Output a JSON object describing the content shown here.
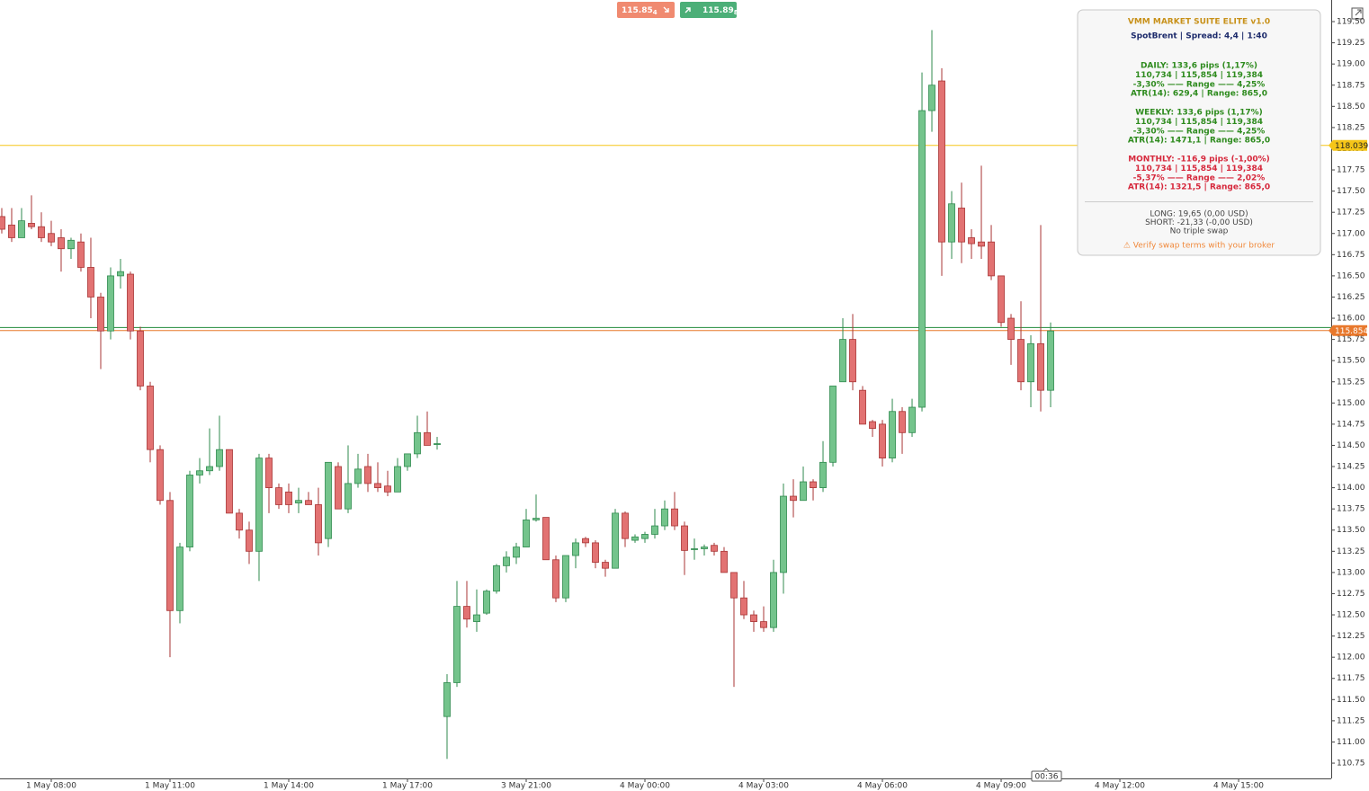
{
  "chart_data": {
    "type": "candlestick",
    "open": [
      117.2,
      117.1,
      116.95,
      117.12,
      117.08,
      117.0,
      116.95,
      116.82,
      116.9,
      116.6,
      116.25,
      115.85,
      116.5,
      116.52,
      115.85,
      115.2,
      114.45,
      113.85,
      112.55,
      113.3,
      114.15,
      114.2,
      114.25,
      114.45,
      113.7,
      113.5,
      113.25,
      114.35,
      114.0,
      113.95,
      113.82,
      113.85,
      113.8,
      113.4,
      114.25,
      113.75,
      114.05,
      114.25,
      114.05,
      114.02,
      113.95,
      114.25,
      114.4,
      114.65,
      114.52,
      111.3,
      111.7,
      112.6,
      112.42,
      112.52,
      112.78,
      113.08,
      113.18,
      113.3,
      113.62,
      113.65,
      113.15,
      112.7,
      113.2,
      113.4,
      113.35,
      113.12,
      113.05,
      113.7,
      113.38,
      113.4,
      113.45,
      113.55,
      113.75,
      113.55,
      113.27,
      113.28,
      113.32,
      113.25,
      113.0,
      112.7,
      112.5,
      112.42,
      112.35,
      113.0,
      113.9,
      113.85,
      114.07,
      114.0,
      114.3,
      115.25,
      115.75,
      115.15,
      114.78,
      114.75,
      114.35,
      114.9,
      114.65,
      114.95,
      118.45,
      118.8,
      116.9,
      117.3,
      116.95,
      116.9,
      116.9,
      116.5,
      116.0,
      115.75,
      115.25,
      115.7,
      115.15
    ],
    "high": [
      117.3,
      117.3,
      117.3,
      117.45,
      117.25,
      117.15,
      117.05,
      116.95,
      117.0,
      116.95,
      116.3,
      116.6,
      116.7,
      116.55,
      115.9,
      115.25,
      114.5,
      113.95,
      113.35,
      114.2,
      114.35,
      114.7,
      114.85,
      114.45,
      113.75,
      113.6,
      114.4,
      114.4,
      114.05,
      114.05,
      114.0,
      113.95,
      114.0,
      114.3,
      114.3,
      114.5,
      114.4,
      114.4,
      114.3,
      114.2,
      114.35,
      114.4,
      114.85,
      114.9,
      114.6,
      111.8,
      112.9,
      112.9,
      112.8,
      112.8,
      113.1,
      113.25,
      113.35,
      113.75,
      113.92,
      113.65,
      113.2,
      113.2,
      113.4,
      113.42,
      113.38,
      113.15,
      113.75,
      113.72,
      113.45,
      113.48,
      113.75,
      113.85,
      113.95,
      113.6,
      113.4,
      113.33,
      113.35,
      113.3,
      113.0,
      112.9,
      112.55,
      112.6,
      113.15,
      114.05,
      114.1,
      114.25,
      114.1,
      114.55,
      115.2,
      116.0,
      116.05,
      115.2,
      114.8,
      114.8,
      115.05,
      114.95,
      115.05,
      118.9,
      119.4,
      118.95,
      117.5,
      117.6,
      117.05,
      117.8,
      117.1,
      116.5,
      116.05,
      116.2,
      115.8,
      117.1,
      115.95
    ],
    "low": [
      117.0,
      116.9,
      116.95,
      117.05,
      116.9,
      116.85,
      116.55,
      116.7,
      116.55,
      116.0,
      115.4,
      115.75,
      116.35,
      115.75,
      115.15,
      114.3,
      113.8,
      112.0,
      112.4,
      113.25,
      114.05,
      114.15,
      114.2,
      113.7,
      113.4,
      113.1,
      112.9,
      113.7,
      113.75,
      113.7,
      113.7,
      113.8,
      113.2,
      113.3,
      113.75,
      113.7,
      114.0,
      113.95,
      113.95,
      113.9,
      113.95,
      114.2,
      114.35,
      114.5,
      114.45,
      110.8,
      111.65,
      112.35,
      112.3,
      112.5,
      112.75,
      113.0,
      113.1,
      113.3,
      113.6,
      113.15,
      112.65,
      112.65,
      113.05,
      113.3,
      113.05,
      112.95,
      113.05,
      113.3,
      113.35,
      113.35,
      113.4,
      113.5,
      113.5,
      112.97,
      113.15,
      113.2,
      113.2,
      113.0,
      111.65,
      112.45,
      112.3,
      112.3,
      112.3,
      112.75,
      113.65,
      113.85,
      113.85,
      113.95,
      114.25,
      115.25,
      115.15,
      114.75,
      114.6,
      114.25,
      114.3,
      114.4,
      114.6,
      114.9,
      118.2,
      116.5,
      116.7,
      116.65,
      116.7,
      116.7,
      116.45,
      115.9,
      115.45,
      115.15,
      114.95,
      114.9,
      114.95
    ],
    "close": [
      117.05,
      116.95,
      117.15,
      117.08,
      116.95,
      116.9,
      116.82,
      116.92,
      116.6,
      116.25,
      115.85,
      116.5,
      116.55,
      115.85,
      115.2,
      114.45,
      113.85,
      112.55,
      113.3,
      114.15,
      114.2,
      114.25,
      114.45,
      113.7,
      113.5,
      113.25,
      114.35,
      114.0,
      113.8,
      113.8,
      113.85,
      113.8,
      113.35,
      114.3,
      113.75,
      114.05,
      114.22,
      114.05,
      114.0,
      113.95,
      114.25,
      114.4,
      114.65,
      114.5,
      114.52,
      111.7,
      112.6,
      112.45,
      112.5,
      112.78,
      113.08,
      113.18,
      113.3,
      113.62,
      113.64,
      113.15,
      112.7,
      113.2,
      113.35,
      113.35,
      113.12,
      113.05,
      113.7,
      113.4,
      113.42,
      113.45,
      113.55,
      113.75,
      113.55,
      113.26,
      113.28,
      113.3,
      113.25,
      113.0,
      112.7,
      112.5,
      112.42,
      112.35,
      113.0,
      113.9,
      113.85,
      114.07,
      114.0,
      114.3,
      115.2,
      115.75,
      115.25,
      114.75,
      114.7,
      114.35,
      114.9,
      114.65,
      114.95,
      118.45,
      118.75,
      116.9,
      117.35,
      116.9,
      116.88,
      116.85,
      116.5,
      115.95,
      115.75,
      115.25,
      115.7,
      115.15,
      115.85
    ],
    "up_color": "#74c48c",
    "up_edge": "#2f8a4e",
    "down_color": "#e27272",
    "down_edge": "#a83434",
    "xlim": [
      -0.18,
      134.36
    ],
    "xticks": [
      {
        "value": 5,
        "label": "1 May 08:00"
      },
      {
        "value": 17,
        "label": "1 May 11:00"
      },
      {
        "value": 29,
        "label": "1 May 14:00"
      },
      {
        "value": 41,
        "label": "1 May 17:00"
      },
      {
        "value": 53,
        "label": "3 May 21:00"
      },
      {
        "value": 65,
        "label": "4 May 00:00"
      },
      {
        "value": 77,
        "label": "4 May 03:00"
      },
      {
        "value": 89,
        "label": "4 May 06:00"
      },
      {
        "value": 101,
        "label": "4 May 09:00"
      },
      {
        "value": 113,
        "label": "4 May 12:00"
      },
      {
        "value": 125,
        "label": "4 May 15:00"
      }
    ],
    "ylim": [
      110.57,
      119.755
    ],
    "yticks": [
      {
        "value": 110.75,
        "label": "110.75"
      },
      {
        "value": 111,
        "label": "111.00"
      },
      {
        "value": 111.25,
        "label": "111.25"
      },
      {
        "value": 111.5,
        "label": "111.50"
      },
      {
        "value": 111.75,
        "label": "111.75"
      },
      {
        "value": 112,
        "label": "112.00"
      },
      {
        "value": 112.25,
        "label": "112.25"
      },
      {
        "value": 112.5,
        "label": "112.50"
      },
      {
        "value": 112.75,
        "label": "112.75"
      },
      {
        "value": 113,
        "label": "113.00"
      },
      {
        "value": 113.25,
        "label": "113.25"
      },
      {
        "value": 113.5,
        "label": "113.50"
      },
      {
        "value": 113.75,
        "label": "113.75"
      },
      {
        "value": 114,
        "label": "114.00"
      },
      {
        "value": 114.25,
        "label": "114.25"
      },
      {
        "value": 114.5,
        "label": "114.50"
      },
      {
        "value": 114.75,
        "label": "114.75"
      },
      {
        "value": 115,
        "label": "115.00"
      },
      {
        "value": 115.25,
        "label": "115.25"
      },
      {
        "value": 115.5,
        "label": "115.50"
      },
      {
        "value": 115.75,
        "label": "115.75"
      },
      {
        "value": 116,
        "label": "116.00"
      },
      {
        "value": 116.25,
        "label": "116.25"
      },
      {
        "value": 116.5,
        "label": "116.50"
      },
      {
        "value": 116.75,
        "label": "116.75"
      },
      {
        "value": 117,
        "label": "117.00"
      },
      {
        "value": 117.25,
        "label": "117.25"
      },
      {
        "value": 117.5,
        "label": "117.50"
      },
      {
        "value": 117.75,
        "label": "117.75"
      },
      {
        "value": 118,
        "label": "118.00"
      },
      {
        "value": 118.25,
        "label": "118.25"
      },
      {
        "value": 118.5,
        "label": "118.50"
      },
      {
        "value": 118.75,
        "label": "118.75"
      },
      {
        "value": 119,
        "label": "119.00"
      },
      {
        "value": 119.25,
        "label": "119.25"
      },
      {
        "value": 119.5,
        "label": "119.50"
      }
    ],
    "price_lines": [
      {
        "value": 118.039,
        "color": "#f5c518",
        "labeled": true
      },
      {
        "value": 115.89,
        "color": "#1f8a3a",
        "labeled": false
      },
      {
        "value": 115.854,
        "color": "#e8782c",
        "labeled": true
      }
    ],
    "bid": {
      "price": "115.85",
      "digit": "4",
      "color": "#f08a70"
    },
    "ask": {
      "price": "115.89",
      "digit": "8",
      "color": "#4caf78"
    },
    "timer": "00:36"
  },
  "panel": {
    "title": "VMM MARKET SUITE ELITE v1.0",
    "subtitle": "SpotBrent | Spread: 4,4 | 1:40",
    "sections": [
      {
        "color": "#2e8b1e",
        "lines": [
          "DAILY: 133,6 pips (1,17%)",
          "110,734 | 115,854 | 119,384",
          "-3,30% —— Range —— 4,25%",
          "ATR(14): 629,4 | Range: 865,0"
        ]
      },
      {
        "color": "#2e8b1e",
        "lines": [
          "WEEKLY: 133,6 pips (1,17%)",
          "110,734 | 115,854 | 119,384",
          "-3,30% —— Range —— 4,25%",
          "ATR(14): 1471,1 | Range: 865,0"
        ]
      },
      {
        "color": "#d6283c",
        "lines": [
          "MONTHLY: -116,9 pips (-1,00%)",
          "110,734 | 115,854 | 119,384",
          "-5,37% —— Range —— 2,02%",
          "ATR(14): 1321,5 | Range: 865,0"
        ]
      }
    ],
    "swap": [
      "LONG: 19,65 (0,00 USD)",
      "SHORT: -21,33 (-0,00 USD)",
      "No triple swap"
    ],
    "warning": "⚠ Verify swap terms with your broker"
  }
}
